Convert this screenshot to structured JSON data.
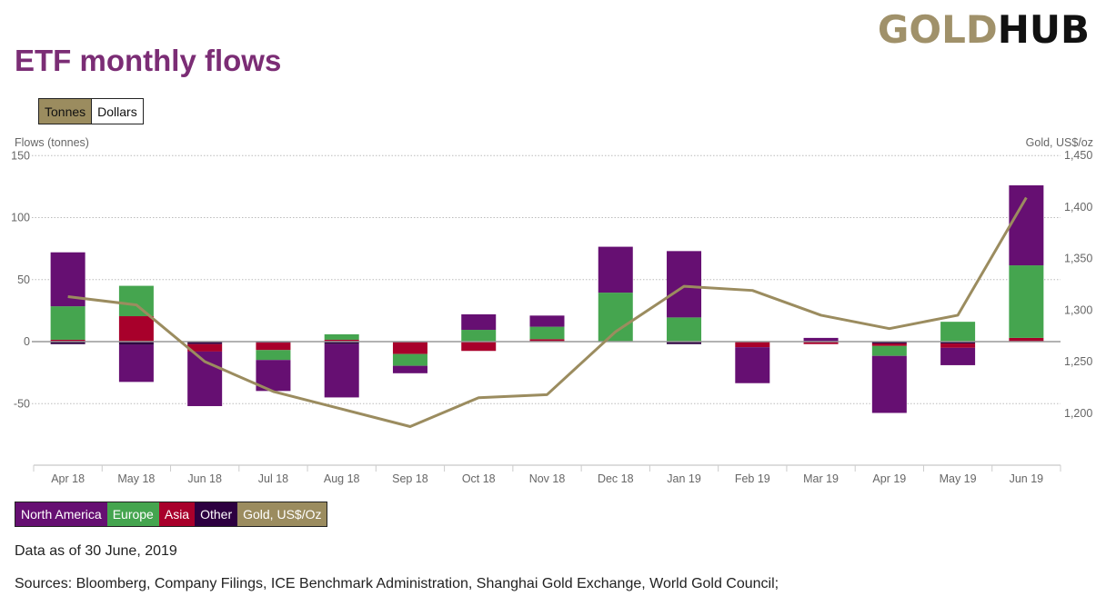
{
  "header": {
    "logo_gold": "GOLD",
    "logo_hub": "HUB",
    "title": "ETF monthly flows"
  },
  "unit_toggle": {
    "options": [
      "Tonnes",
      "Dollars"
    ],
    "selected": "Tonnes"
  },
  "colors": {
    "north_america": "#660f72",
    "europe": "#45a54f",
    "asia": "#a8002b",
    "other": "#2d0040",
    "gold": "#9b8c5f",
    "title": "#7b2d75"
  },
  "chart_data": {
    "type": "bar",
    "stacked": true,
    "title": "ETF monthly flows",
    "ylabel": "Flows (tonnes)",
    "y2label": "Gold, US$/oz",
    "ylim": [
      -100,
      150
    ],
    "y2lim": [
      1160,
      1450
    ],
    "yticks": [
      150,
      100,
      50,
      0,
      -50
    ],
    "ytick_labels": [
      "150",
      "100",
      "50",
      "0",
      "-50"
    ],
    "y2ticks": [
      1450,
      1400,
      1350,
      1300,
      1250,
      1200
    ],
    "y2tick_labels": [
      "1,450",
      "1,400",
      "1,350",
      "1,300",
      "1,250",
      "1,200"
    ],
    "grid": true,
    "categories": [
      "Apr 18",
      "May 18",
      "Jun 18",
      "Jul 18",
      "Aug 18",
      "Sep 18",
      "Oct 18",
      "Nov 18",
      "Dec 18",
      "Jan 19",
      "Feb 19",
      "Mar 19",
      "Apr 19",
      "May 19",
      "Jun 19"
    ],
    "series": [
      {
        "name": "North America",
        "key": "north_america",
        "values": [
          43.5,
          -30,
          -44,
          -25,
          -43,
          -6,
          12.5,
          9,
          37,
          53.5,
          -29,
          3,
          -46,
          -14,
          64.5
        ]
      },
      {
        "name": "Europe",
        "key": "europe",
        "values": [
          27,
          24.5,
          0,
          -8,
          4.4,
          -9.5,
          9.5,
          10,
          39.5,
          19.5,
          0,
          0,
          -8,
          16,
          58.5
        ]
      },
      {
        "name": "Asia",
        "key": "asia",
        "values": [
          1.5,
          20.5,
          -6,
          -6,
          1.5,
          -9.5,
          -7.5,
          2,
          0,
          0,
          -4.5,
          -2,
          -2,
          -3.5,
          3
        ]
      },
      {
        "name": "Other",
        "key": "other",
        "values": [
          -2,
          -2.5,
          -2,
          -0.8,
          -2,
          -0.5,
          0,
          0,
          0,
          -2,
          0,
          0,
          -1.5,
          -1.5,
          0
        ]
      }
    ],
    "line_series": {
      "name": "Gold, US$/Oz",
      "axis": "right",
      "values": [
        1313,
        1305,
        1250,
        1221,
        1204,
        1187,
        1215,
        1218,
        1279,
        1323,
        1319,
        1295,
        1282,
        1295,
        1409
      ]
    },
    "legend": [
      "North America",
      "Europe",
      "Asia",
      "Other",
      "Gold, US$/Oz"
    ],
    "legend_position": "bottom-left"
  },
  "footer": {
    "data_as_of": "Data as of 30 June, 2019",
    "sources": "Sources: Bloomberg, Company Filings, ICE Benchmark Administration, Shanghai Gold Exchange, World Gold Council;"
  }
}
